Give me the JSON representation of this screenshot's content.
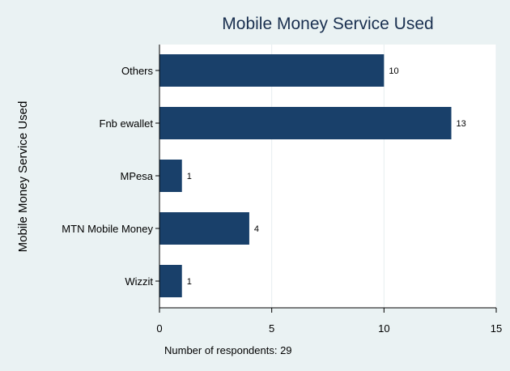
{
  "chart_data": {
    "type": "bar",
    "orientation": "horizontal",
    "title": "Mobile Money Service Used",
    "ylabel": "Mobile Money Service Used",
    "xlabel": "",
    "categories": [
      "Others",
      "Fnb ewallet",
      "MPesa",
      "MTN Mobile Money",
      "Wizzit"
    ],
    "values": [
      10,
      13,
      1,
      4,
      1
    ],
    "data_labels": [
      "10",
      "13",
      "1",
      "4",
      "1"
    ],
    "xlim": [
      0,
      15
    ],
    "x_ticks": [
      0,
      5,
      10,
      15
    ],
    "x_tick_labels": [
      "0",
      "5",
      "10",
      "15"
    ],
    "grid": "vertical",
    "note": "Number of respondents: 29"
  },
  "colors": {
    "background": "#eaf2f3",
    "plot_background": "#ffffff",
    "bar": "#19406a",
    "grid": "#e6eef0",
    "title": "#1a3050",
    "axis": "#000000"
  }
}
